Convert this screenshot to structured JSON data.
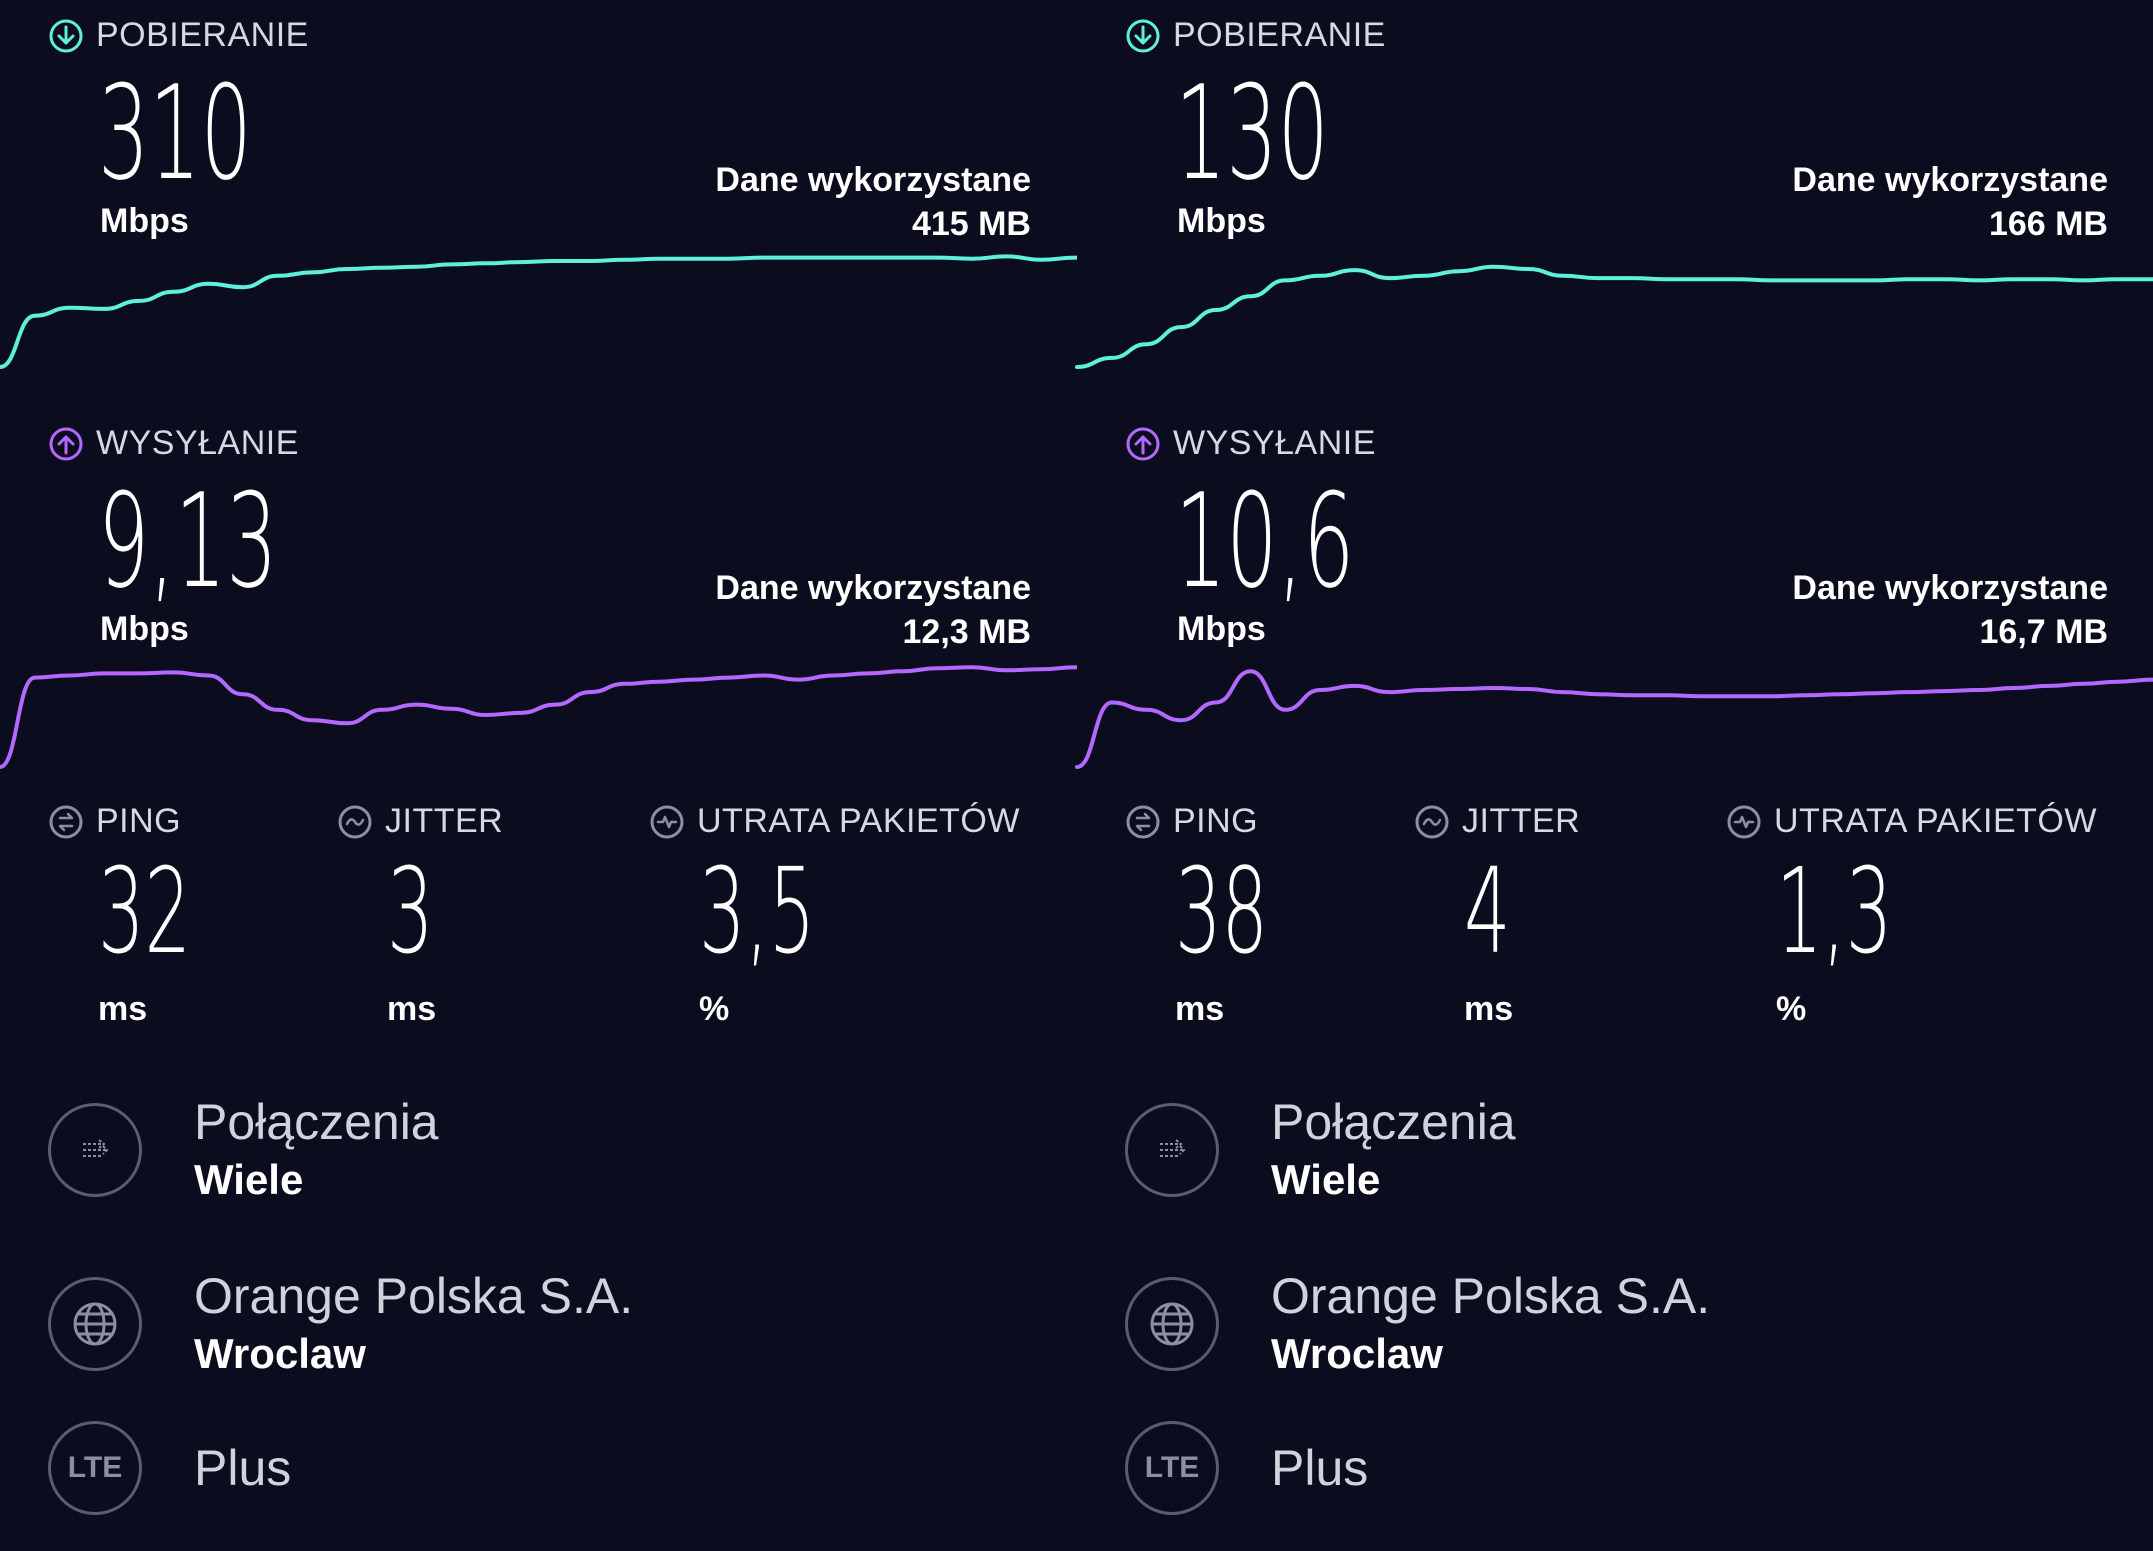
{
  "colors": {
    "background": "#0b0d1f",
    "download": "#5ff0dc",
    "upload": "#b468ff",
    "muted_icon": "#8c8fa3"
  },
  "panels": [
    {
      "download": {
        "label": "POBIERANIE",
        "value": "310",
        "unit": "Mbps",
        "data_used_label": "Dane wykorzystane",
        "data_used_value": "415 MB",
        "icon": "download-arrow-icon",
        "chart_data": {
          "type": "line",
          "series": [
            {
              "values": [
                0.0,
                0.45,
                0.52,
                0.51,
                0.58,
                0.66,
                0.73,
                0.7,
                0.8,
                0.83,
                0.86,
                0.87,
                0.88,
                0.9,
                0.91,
                0.92,
                0.93,
                0.93,
                0.94,
                0.95,
                0.95,
                0.95,
                0.96,
                0.96,
                0.96,
                0.96,
                0.96,
                0.96,
                0.95,
                0.97,
                0.94,
                0.96
              ]
            }
          ],
          "ylim": [
            0,
            1
          ]
        }
      },
      "upload": {
        "label": "WYSYŁANIE",
        "value": "9,13",
        "unit": "Mbps",
        "data_used_label": "Dane wykorzystane",
        "data_used_value": "12,3 MB",
        "icon": "upload-arrow-icon",
        "chart_data": {
          "type": "line",
          "series": [
            {
              "values": [
                0.0,
                0.86,
                0.88,
                0.9,
                0.9,
                0.91,
                0.88,
                0.7,
                0.55,
                0.45,
                0.42,
                0.55,
                0.6,
                0.56,
                0.5,
                0.52,
                0.6,
                0.72,
                0.8,
                0.82,
                0.84,
                0.86,
                0.88,
                0.84,
                0.88,
                0.9,
                0.92,
                0.95,
                0.96,
                0.93,
                0.94,
                0.96
              ]
            }
          ],
          "ylim": [
            0,
            1
          ]
        }
      },
      "metrics": [
        {
          "label": "PING",
          "value": "32",
          "unit": "ms",
          "icon": "ping-icon"
        },
        {
          "label": "JITTER",
          "value": "3",
          "unit": "ms",
          "icon": "jitter-icon"
        },
        {
          "label": "UTRATA PAKIETÓW",
          "value": "3,5",
          "unit": "%",
          "icon": "packet-loss-icon"
        }
      ],
      "info": [
        {
          "icon": "connections-icon",
          "title": "Połączenia",
          "sub": "Wiele"
        },
        {
          "icon": "globe-icon",
          "title": "Orange Polska S.A.",
          "sub": "Wroclaw"
        },
        {
          "icon": "lte-icon",
          "icon_text": "LTE",
          "title": "Plus",
          "sub": ""
        }
      ]
    },
    {
      "download": {
        "label": "POBIERANIE",
        "value": "130",
        "unit": "Mbps",
        "data_used_label": "Dane wykorzystane",
        "data_used_value": "166 MB",
        "icon": "download-arrow-icon",
        "chart_data": {
          "type": "line",
          "series": [
            {
              "values": [
                0.0,
                0.08,
                0.2,
                0.35,
                0.5,
                0.62,
                0.76,
                0.8,
                0.85,
                0.78,
                0.8,
                0.84,
                0.88,
                0.86,
                0.8,
                0.78,
                0.78,
                0.77,
                0.77,
                0.77,
                0.76,
                0.76,
                0.76,
                0.76,
                0.77,
                0.77,
                0.76,
                0.77,
                0.77,
                0.76,
                0.77,
                0.77
              ]
            }
          ],
          "ylim": [
            0,
            1
          ]
        }
      },
      "upload": {
        "label": "WYSYŁANIE",
        "value": "10,6",
        "unit": "Mbps",
        "data_used_label": "Dane wykorzystane",
        "data_used_value": "16,7 MB",
        "icon": "upload-arrow-icon",
        "chart_data": {
          "type": "line",
          "series": [
            {
              "values": [
                0.0,
                0.62,
                0.55,
                0.45,
                0.62,
                0.92,
                0.55,
                0.74,
                0.78,
                0.72,
                0.74,
                0.75,
                0.76,
                0.75,
                0.72,
                0.7,
                0.69,
                0.69,
                0.68,
                0.68,
                0.68,
                0.69,
                0.7,
                0.71,
                0.72,
                0.73,
                0.74,
                0.76,
                0.78,
                0.8,
                0.82,
                0.84
              ]
            }
          ],
          "ylim": [
            0,
            1
          ]
        }
      },
      "metrics": [
        {
          "label": "PING",
          "value": "38",
          "unit": "ms",
          "icon": "ping-icon"
        },
        {
          "label": "JITTER",
          "value": "4",
          "unit": "ms",
          "icon": "jitter-icon"
        },
        {
          "label": "UTRATA PAKIETÓW",
          "value": "1,3",
          "unit": "%",
          "icon": "packet-loss-icon"
        }
      ],
      "info": [
        {
          "icon": "connections-icon",
          "title": "Połączenia",
          "sub": "Wiele"
        },
        {
          "icon": "globe-icon",
          "title": "Orange Polska S.A.",
          "sub": "Wroclaw"
        },
        {
          "icon": "lte-icon",
          "icon_text": "LTE",
          "title": "Plus",
          "sub": ""
        }
      ]
    }
  ]
}
